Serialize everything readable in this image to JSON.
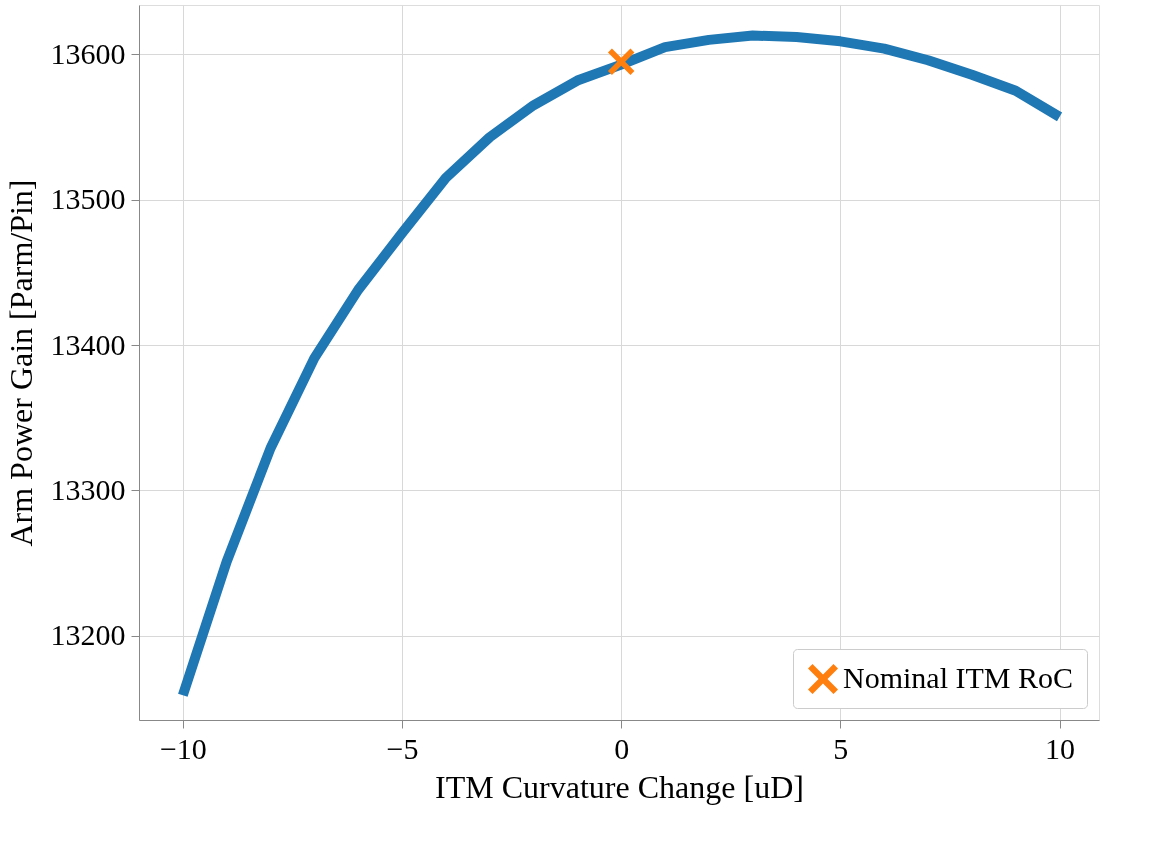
{
  "chart_data": {
    "type": "line",
    "xlabel": "ITM Curvature Change [uD]",
    "ylabel": "Arm Power Gain [Parm/Pin]",
    "xlim": [
      -11,
      10.9
    ],
    "ylim": [
      13142,
      13634
    ],
    "xticks": [
      -10,
      -5,
      0,
      5,
      10
    ],
    "yticks": [
      13200,
      13300,
      13400,
      13500,
      13600
    ],
    "grid": true,
    "legend": "bottom right",
    "series": [
      {
        "color": "#1f77b4",
        "line_style": "solid",
        "x": [
          -10,
          -9,
          -8,
          -7,
          -6,
          -5,
          -4,
          -3,
          -2,
          -1,
          0,
          1,
          2,
          3,
          4,
          5,
          6,
          7,
          8,
          9,
          10
        ],
        "values": [
          13159,
          13251,
          13329,
          13391,
          13438,
          13477,
          13515,
          13543,
          13565,
          13582,
          13593,
          13605,
          13610,
          13613,
          13612,
          13609,
          13604,
          13596,
          13586,
          13575,
          13557
        ]
      },
      {
        "type": "scatter",
        "name": "Nominal ITM RoC",
        "color": "#ff7f0e",
        "marker": "cross",
        "x": [
          0
        ],
        "values": [
          13595
        ]
      }
    ]
  }
}
